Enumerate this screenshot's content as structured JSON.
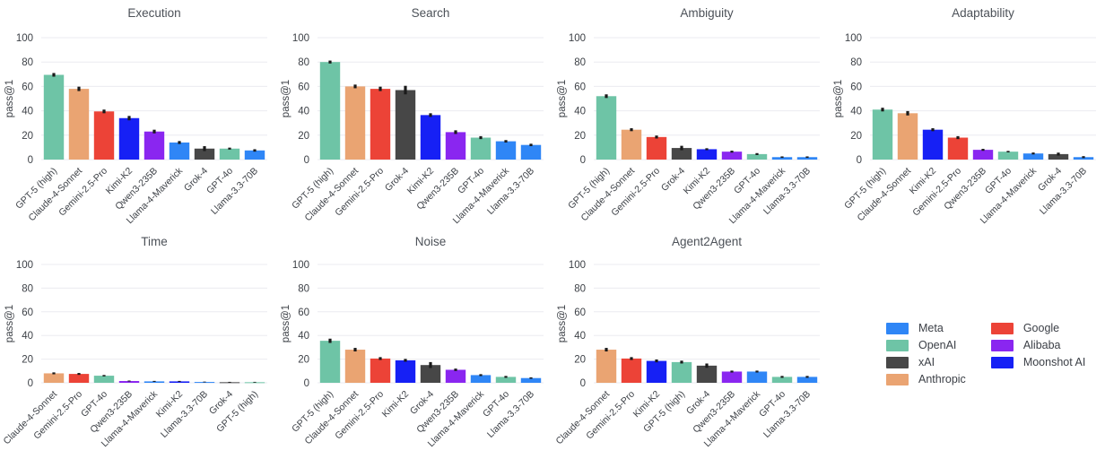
{
  "figure": {
    "background": "#ffffff",
    "title_color": "#4c5158",
    "tick_color": "#3d4147",
    "grid_color": "#ebebf0",
    "errorbar_color": "#1a1a1a"
  },
  "colors": {
    "Meta": "#2f86f6",
    "OpenAI": "#6ec4a6",
    "xAI": "#474747",
    "Anthropic": "#eaa472",
    "Google": "#ec4337",
    "Alibaba": "#8a26f0",
    "Moonshot AI": "#1620f5"
  },
  "model_company": {
    "GPT-5 (high)": "OpenAI",
    "GPT-4o": "OpenAI",
    "Claude-4-Sonnet": "Anthropic",
    "Gemini-2.5-Pro": "Google",
    "Kimi-K2": "Moonshot AI",
    "Qwen3-235B": "Alibaba",
    "Llama-4-Maverick": "Meta",
    "Llama-3.3-70B": "Meta",
    "Grok-4": "xAI"
  },
  "legend": {
    "columns": [
      [
        "Meta",
        "OpenAI",
        "xAI",
        "Anthropic"
      ],
      [
        "Google",
        "Alibaba",
        "Moonshot AI"
      ]
    ]
  },
  "chart_data": [
    {
      "type": "bar",
      "title": "Execution",
      "ylabel": "pass@1",
      "ylim": [
        0,
        100
      ],
      "yticks": [
        0,
        20,
        40,
        60,
        80,
        100
      ],
      "grid": true,
      "categories": [
        "GPT-5 (high)",
        "Claude-4-Sonnet",
        "Gemini-2.5-Pro",
        "Kimi-K2",
        "Qwen3-235B",
        "Llama-4-Maverick",
        "Grok-4",
        "GPT-4o",
        "Llama-3.3-70B"
      ],
      "values": [
        69.5,
        58,
        39.5,
        34,
        23,
        14,
        9,
        9,
        7.5
      ],
      "errors": [
        1.5,
        1.8,
        1.5,
        1.8,
        1.5,
        1.2,
        2.0,
        0.8,
        1.0
      ]
    },
    {
      "type": "bar",
      "title": "Search",
      "ylabel": "pass@1",
      "ylim": [
        0,
        100
      ],
      "yticks": [
        0,
        20,
        40,
        60,
        80,
        100
      ],
      "grid": true,
      "categories": [
        "GPT-5 (high)",
        "Claude-4-Sonnet",
        "Gemini-2.5-Pro",
        "Grok-4",
        "Kimi-K2",
        "Qwen3-235B",
        "GPT-4o",
        "Llama-4-Maverick",
        "Llama-3.3-70B"
      ],
      "values": [
        80,
        60,
        58,
        57,
        36.5,
        22.5,
        18,
        15,
        12
      ],
      "errors": [
        1.2,
        1.5,
        1.8,
        3.5,
        1.5,
        1.5,
        1.2,
        1.0,
        1.0
      ]
    },
    {
      "type": "bar",
      "title": "Ambiguity",
      "ylabel": "pass@1",
      "ylim": [
        0,
        100
      ],
      "yticks": [
        0,
        20,
        40,
        60,
        80,
        100
      ],
      "grid": true,
      "categories": [
        "GPT-5 (high)",
        "Claude-4-Sonnet",
        "Gemini-2.5-Pro",
        "Grok-4",
        "Kimi-K2",
        "Qwen3-235B",
        "GPT-4o",
        "Llama-4-Maverick",
        "Llama-3.3-70B"
      ],
      "values": [
        52,
        24.5,
        18.5,
        9.5,
        8.5,
        6.5,
        4.5,
        2,
        2
      ],
      "errors": [
        1.5,
        1.2,
        1.2,
        1.8,
        0.8,
        0.8,
        0.8,
        0.6,
        0.6
      ]
    },
    {
      "type": "bar",
      "title": "Adaptability",
      "ylabel": "pass@1",
      "ylim": [
        0,
        100
      ],
      "yticks": [
        0,
        20,
        40,
        60,
        80,
        100
      ],
      "grid": true,
      "categories": [
        "GPT-5 (high)",
        "Claude-4-Sonnet",
        "Kimi-K2",
        "Gemini-2.5-Pro",
        "Qwen3-235B",
        "GPT-4o",
        "Llama-4-Maverick",
        "Grok-4",
        "Llama-3.3-70B"
      ],
      "values": [
        41,
        38,
        24.5,
        18,
        8,
        6.5,
        5,
        4.5,
        2
      ],
      "errors": [
        1.5,
        1.8,
        1.2,
        1.2,
        0.8,
        0.6,
        0.8,
        1.2,
        0.8
      ]
    },
    {
      "type": "bar",
      "title": "Time",
      "ylabel": "pass@1",
      "ylim": [
        0,
        100
      ],
      "yticks": [
        0,
        20,
        40,
        60,
        80,
        100
      ],
      "grid": true,
      "categories": [
        "Claude-4-Sonnet",
        "Gemini-2.5-Pro",
        "GPT-4o",
        "Qwen3-235B",
        "Llama-4-Maverick",
        "Kimi-K2",
        "Llama-3.3-70B",
        "Grok-4",
        "GPT-5 (high)"
      ],
      "values": [
        8,
        7.5,
        6,
        1.5,
        1.2,
        1.2,
        0.7,
        0.5,
        0.5
      ],
      "errors": [
        0.8,
        0.8,
        0.6,
        0.4,
        0.4,
        0.4,
        0.3,
        0.3,
        0.3
      ]
    },
    {
      "type": "bar",
      "title": "Noise",
      "ylabel": "pass@1",
      "ylim": [
        0,
        100
      ],
      "yticks": [
        0,
        20,
        40,
        60,
        80,
        100
      ],
      "grid": true,
      "categories": [
        "GPT-5 (high)",
        "Claude-4-Sonnet",
        "Gemini-2.5-Pro",
        "Kimi-K2",
        "Grok-4",
        "Qwen3-235B",
        "Llama-4-Maverick",
        "GPT-4o",
        "Llama-3.3-70B"
      ],
      "values": [
        35.5,
        28,
        20.5,
        19,
        15,
        11,
        6.5,
        5,
        4
      ],
      "errors": [
        1.8,
        1.5,
        1.2,
        1.2,
        2.5,
        1.0,
        0.8,
        0.8,
        0.6
      ]
    },
    {
      "type": "bar",
      "title": "Agent2Agent",
      "ylabel": "pass@1",
      "ylim": [
        0,
        100
      ],
      "yticks": [
        0,
        20,
        40,
        60,
        80,
        100
      ],
      "grid": true,
      "categories": [
        "Claude-4-Sonnet",
        "Gemini-2.5-Pro",
        "Kimi-K2",
        "GPT-5 (high)",
        "Grok-4",
        "Qwen3-235B",
        "Llama-4-Maverick",
        "GPT-4o",
        "Llama-3.3-70B"
      ],
      "values": [
        28,
        20.5,
        18.5,
        17.5,
        14.5,
        9.5,
        9.5,
        5,
        5
      ],
      "errors": [
        1.5,
        1.2,
        1.2,
        1.2,
        1.8,
        0.8,
        0.8,
        0.8,
        0.8
      ]
    }
  ]
}
